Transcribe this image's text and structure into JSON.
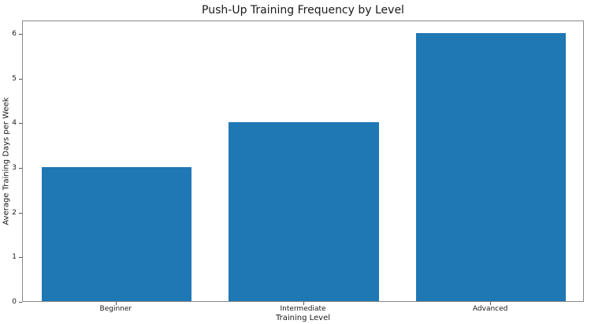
{
  "chart_data": {
    "type": "bar",
    "title": "Push-Up Training Frequency by Level",
    "xlabel": "Training Level",
    "ylabel": "Average Training Days per Week",
    "categories": [
      "Beginner",
      "Intermediate",
      "Advanced"
    ],
    "values": [
      3,
      4,
      6
    ],
    "yticks": [
      0,
      1,
      2,
      3,
      4,
      5,
      6
    ],
    "ylim": [
      0,
      6.3
    ],
    "bar_width_fraction": 0.8,
    "bar_color": "#1f77b4",
    "spine_color": "#8a8a8a",
    "text_color": "#1a1a1a",
    "background_color": "#ffffff",
    "grid": false,
    "legend": null
  }
}
